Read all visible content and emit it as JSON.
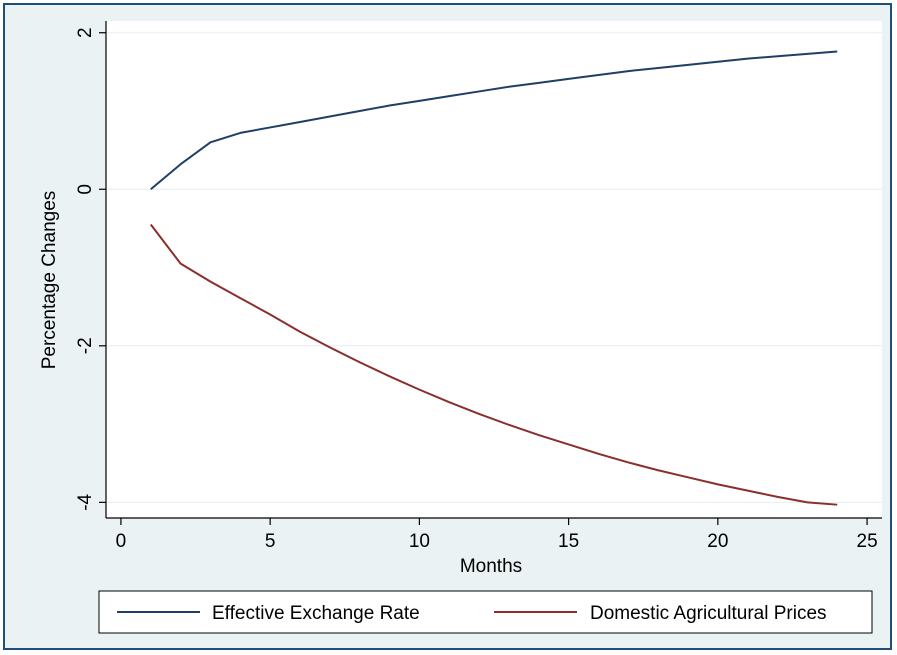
{
  "colors": {
    "figure_background": "#eaf2f3",
    "figure_border": "#1f4e79",
    "plot_background": "#ffffff",
    "grid": "#e6eef0",
    "axis": "#000000"
  },
  "chart_data": {
    "type": "line",
    "title": "",
    "xlabel": "Months",
    "ylabel": "Percentage Changes",
    "xlim": [
      -0.5,
      25.5
    ],
    "ylim": [
      -4.2,
      2.15
    ],
    "xticks": [
      0,
      5,
      10,
      15,
      20,
      25
    ],
    "xtick_labels": [
      "0",
      "5",
      "10",
      "15",
      "20",
      "25"
    ],
    "yticks": [
      -4,
      -2,
      0,
      2
    ],
    "ytick_labels": [
      "-4",
      "-2",
      "0",
      "2"
    ],
    "grid": "horizontal",
    "legend_position": "bottom",
    "series": [
      {
        "name": "Effective Exchange Rate",
        "color": "#1f3f66",
        "x": [
          1,
          2,
          3,
          4,
          5,
          6,
          7,
          8,
          9,
          10,
          11,
          12,
          13,
          14,
          15,
          16,
          17,
          18,
          19,
          20,
          21,
          22,
          23,
          24
        ],
        "y": [
          0.0,
          0.32,
          0.6,
          0.72,
          0.79,
          0.86,
          0.93,
          1.0,
          1.07,
          1.13,
          1.19,
          1.25,
          1.31,
          1.36,
          1.41,
          1.46,
          1.51,
          1.55,
          1.59,
          1.63,
          1.67,
          1.7,
          1.73,
          1.76
        ]
      },
      {
        "name": "Domestic Agricultural Prices",
        "color": "#8b2e2e",
        "x": [
          1,
          2,
          3,
          4,
          5,
          6,
          7,
          8,
          9,
          10,
          11,
          12,
          13,
          14,
          15,
          16,
          17,
          18,
          19,
          20,
          21,
          22,
          23,
          24
        ],
        "y": [
          -0.45,
          -0.95,
          -1.18,
          -1.39,
          -1.6,
          -1.82,
          -2.02,
          -2.21,
          -2.39,
          -2.56,
          -2.72,
          -2.87,
          -3.01,
          -3.14,
          -3.26,
          -3.38,
          -3.49,
          -3.59,
          -3.68,
          -3.77,
          -3.85,
          -3.93,
          -4.0,
          -4.03
        ]
      }
    ]
  }
}
